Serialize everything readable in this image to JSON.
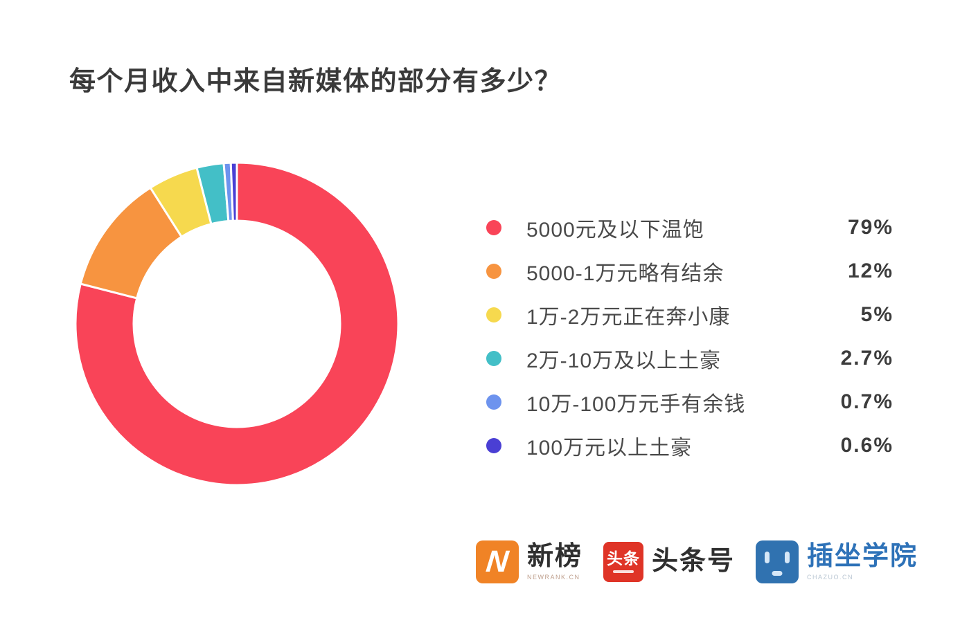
{
  "title": "每个月收入中来自新媒体的部分有多少？",
  "chart_data": {
    "type": "pie",
    "subtype": "donut",
    "title": "每个月收入中来自新媒体的部分有多少？",
    "start_angle_deg": 0,
    "direction": "clockwise",
    "outer_radius_px": 233,
    "inner_radius_px": 149,
    "segment_gap_color": "#ffffff",
    "legend_position": "right",
    "segments": [
      {
        "label": "5000元及以下温饱",
        "value": 79,
        "display": "79%",
        "color": "#f94458"
      },
      {
        "label": "5000-1万元略有结余",
        "value": 12,
        "display": "12%",
        "color": "#f79440"
      },
      {
        "label": "1万-2万元正在奔小康",
        "value": 5,
        "display": "5%",
        "color": "#f6d94e"
      },
      {
        "label": "2万-10万及以上土豪",
        "value": 2.7,
        "display": "2.7%",
        "color": "#43bfc7"
      },
      {
        "label": "10万-100万元手有余钱",
        "value": 0.7,
        "display": "0.7%",
        "color": "#6d93ee"
      },
      {
        "label": "100万元以上土豪",
        "value": 0.6,
        "display": "0.6%",
        "color": "#4a3fd4"
      }
    ]
  },
  "footer": {
    "logos": {
      "newrank": {
        "text": "新榜",
        "subtext": "NEWRANK.CN",
        "badge_glyph": "N",
        "badge_color": "#f08326"
      },
      "toutiao": {
        "text": "头条号",
        "badge_text": "头条",
        "badge_color": "#df3427"
      },
      "chazuo": {
        "text": "插坐学院",
        "subtext": "CHAZUO.CN",
        "badge_color": "#3072b0"
      }
    }
  }
}
